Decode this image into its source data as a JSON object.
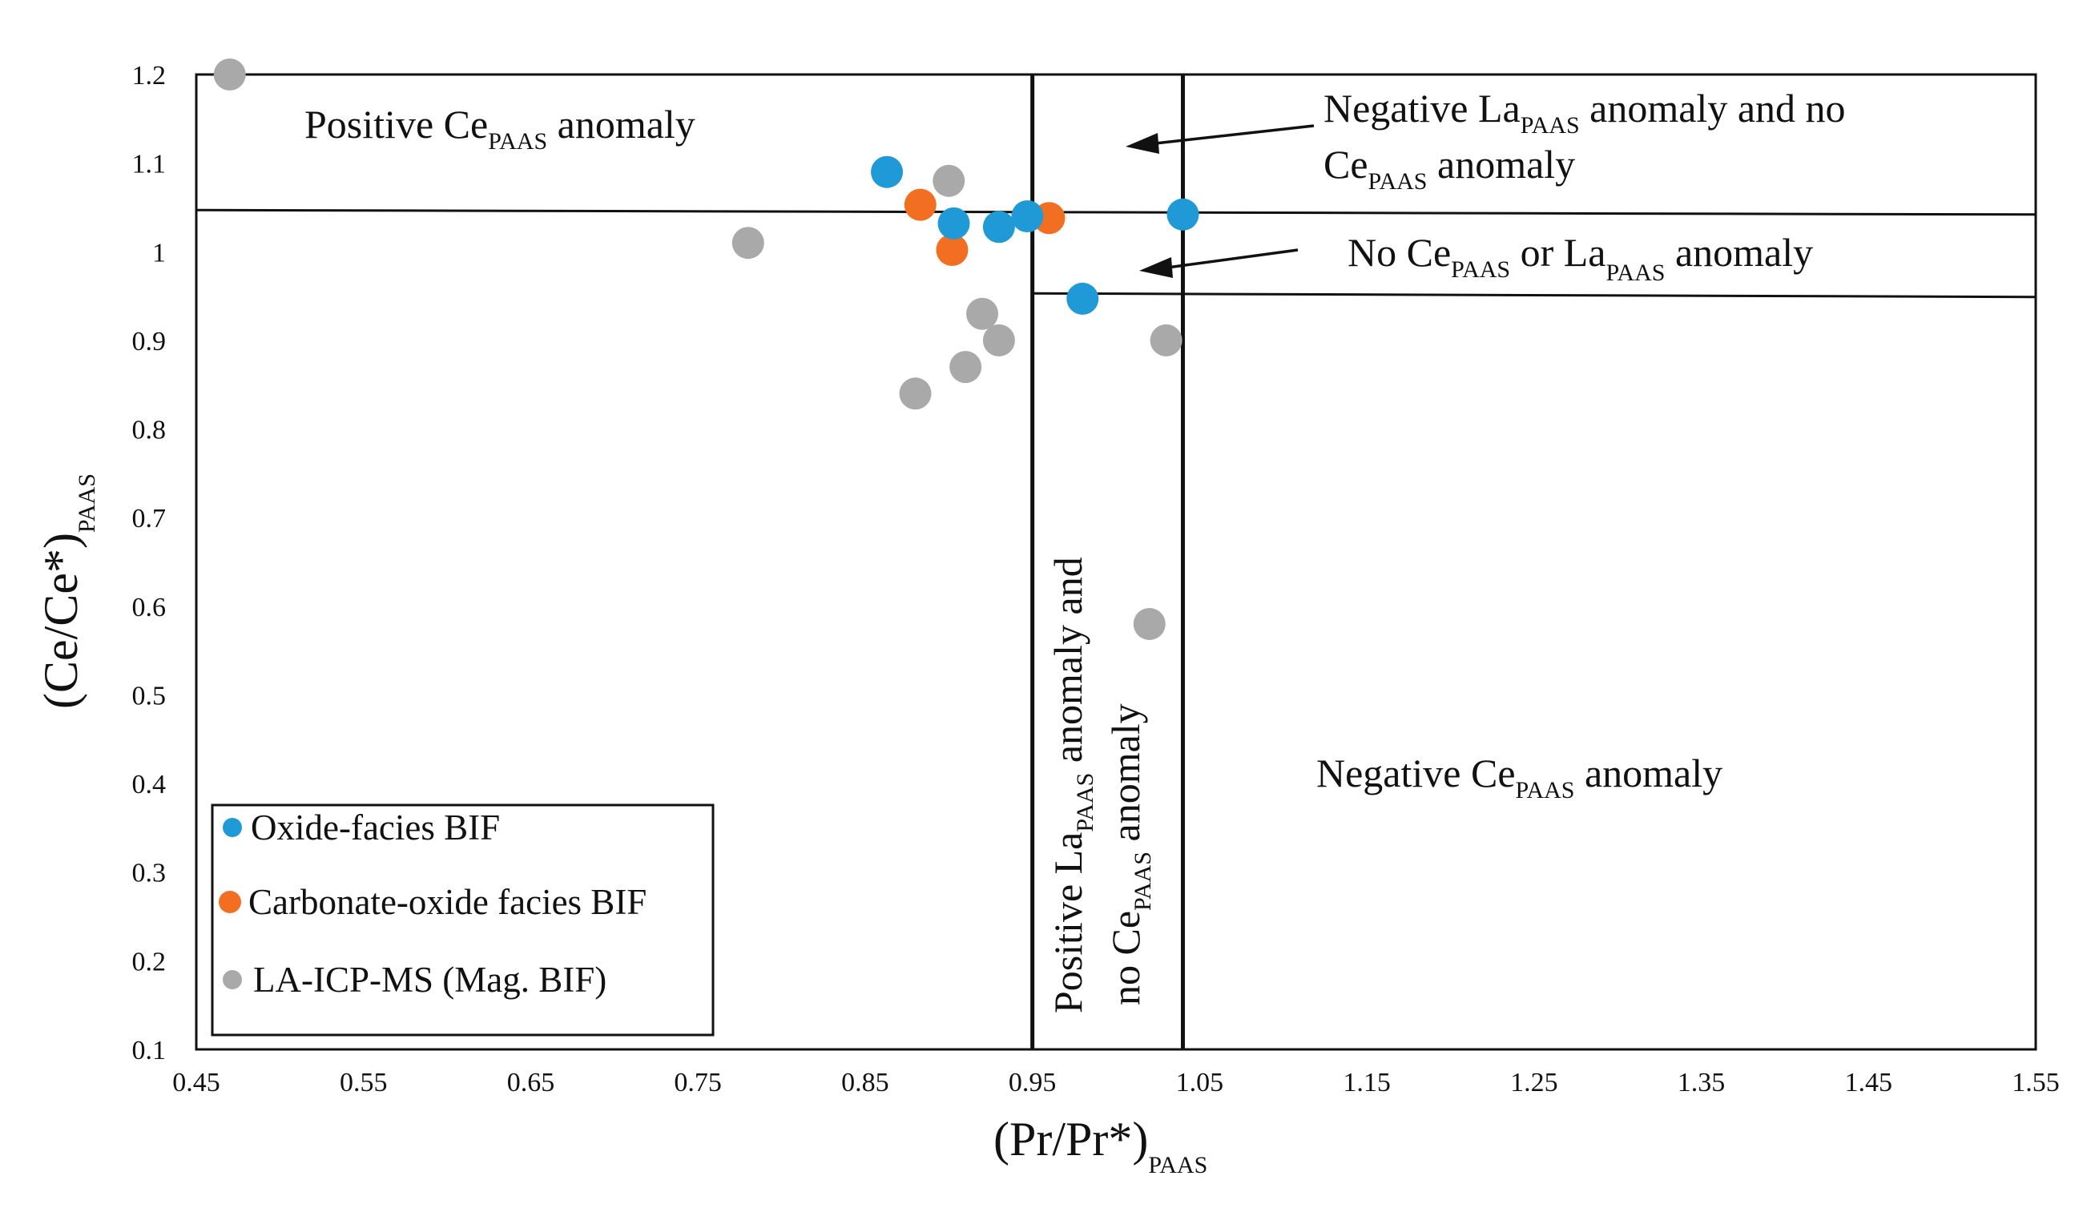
{
  "chart_data": {
    "type": "scatter",
    "title": "",
    "xlabel": {
      "main": "(Pr/Pr*)",
      "sub": "PAAS"
    },
    "ylabel": {
      "main": "(Ce/Ce*)",
      "sub": "PAAS"
    },
    "xlim": [
      0.45,
      1.55
    ],
    "ylim": [
      0.1,
      1.2
    ],
    "xticks": [
      "0.45",
      "0.55",
      "0.65",
      "0.75",
      "0.85",
      "0.95",
      "1.05",
      "1.15",
      "1.25",
      "1.35",
      "1.45",
      "1.55"
    ],
    "yticks": [
      "0.1",
      "0.2",
      "0.3",
      "0.4",
      "0.5",
      "0.6",
      "0.7",
      "0.8",
      "0.9",
      "1",
      "1.1",
      "1.2"
    ],
    "grid": false,
    "legend_position": "bottom-left",
    "series": [
      {
        "name": "Oxide-facies  BIF",
        "color": "#1f9ad6",
        "points": [
          [
            0.863,
            1.09
          ],
          [
            0.903,
            1.032
          ],
          [
            0.93,
            1.028
          ],
          [
            0.947,
            1.04
          ],
          [
            0.98,
            0.947
          ],
          [
            1.04,
            1.042
          ]
        ]
      },
      {
        "name": "Carbonate-oxide facies BIF",
        "color": "#f26f21",
        "points": [
          [
            0.883,
            1.053
          ],
          [
            0.902,
            1.002
          ],
          [
            0.96,
            1.038
          ]
        ]
      },
      {
        "name": "LA-ICP-MS (Mag. BIF)",
        "color": "#a9a9a9",
        "points": [
          [
            0.47,
            1.2
          ],
          [
            0.78,
            1.01
          ],
          [
            0.9,
            1.08
          ],
          [
            0.92,
            0.93
          ],
          [
            0.93,
            0.9
          ],
          [
            0.91,
            0.87
          ],
          [
            0.88,
            0.84
          ],
          [
            1.03,
            0.9
          ],
          [
            1.02,
            0.58
          ]
        ]
      }
    ],
    "reference_lines": [
      {
        "orientation": "vertical",
        "x": 0.95,
        "y_from": 0.1,
        "y_to": 1.2
      },
      {
        "orientation": "vertical",
        "x": 1.04,
        "y_from": 0.1,
        "y_to": 1.2
      },
      {
        "orientation": "sloped",
        "x_from": 0.45,
        "y_from": 1.047,
        "x_to": 1.55,
        "y_to": 1.042
      },
      {
        "orientation": "sloped",
        "x_from": 0.95,
        "y_from": 0.953,
        "x_to": 1.55,
        "y_to": 0.949
      }
    ],
    "annotations": {
      "positive_ce": {
        "pre": "Positive Ce",
        "sub": "PAAS",
        "post": " anomaly"
      },
      "negative_la": {
        "line1_pre": "Negative La",
        "line1_sub": "PAAS",
        "line1_post": " anomaly and no",
        "line2_pre": "Ce",
        "line2_sub": "PAAS",
        "line2_post": " anomaly"
      },
      "no_anomaly": {
        "pre": "No Ce",
        "sub1": "PAAS",
        "mid": " or  La",
        "sub2": "PAAS",
        "post": " anomaly"
      },
      "negative_ce": {
        "pre": "Negative Ce",
        "sub": "PAAS",
        "post": " anomaly"
      },
      "positive_la": {
        "line1_pre": "Positive La",
        "line1_sub": "PAAS",
        "line1_post": " anomaly and",
        "line2_pre": "no Ce",
        "line2_sub": "PAAS",
        "line2_post": " anomaly"
      }
    }
  }
}
